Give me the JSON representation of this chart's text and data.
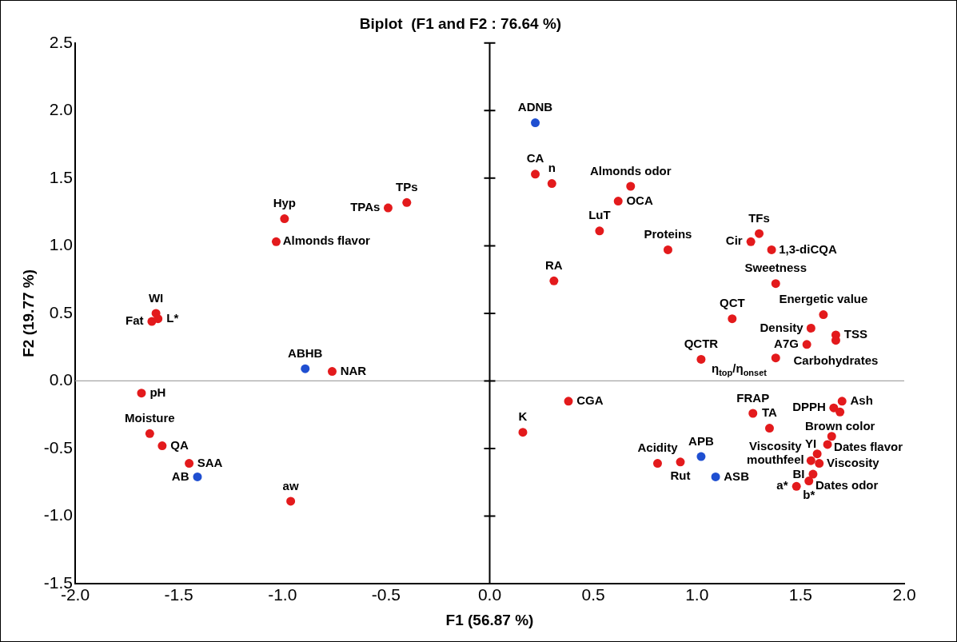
{
  "chart_data": {
    "type": "scatter",
    "title": "Biplot  (F1 and F2 : 76.64 %)",
    "xlabel": "F1 (56.87 %)",
    "ylabel": "F2 (19.77 %)",
    "xlim": [
      -2,
      2
    ],
    "ylim": [
      -1.5,
      2.5
    ],
    "xticks": [
      {
        "value": -2,
        "label": "-2.0"
      },
      {
        "value": -1.5,
        "label": "-1.5"
      },
      {
        "value": -1,
        "label": "-1.0"
      },
      {
        "value": -0.5,
        "label": "-0.5"
      },
      {
        "value": 0,
        "label": "0.0"
      },
      {
        "value": 0.5,
        "label": "0.5"
      },
      {
        "value": 1,
        "label": "1.0"
      },
      {
        "value": 1.5,
        "label": "1.5"
      },
      {
        "value": 2,
        "label": "2.0"
      }
    ],
    "yticks": [
      {
        "value": -1.5,
        "label": "-1.5"
      },
      {
        "value": -1,
        "label": "-1.0"
      },
      {
        "value": -0.5,
        "label": "-0.5"
      },
      {
        "value": 0,
        "label": "0.0"
      },
      {
        "value": 0.5,
        "label": "0.5"
      },
      {
        "value": 1,
        "label": "1.0"
      },
      {
        "value": 1.5,
        "label": "1.5"
      },
      {
        "value": 2,
        "label": "2.0"
      },
      {
        "value": 2.5,
        "label": "2.5"
      }
    ],
    "grid": false,
    "legend": false,
    "marker": "circle",
    "ref_lines": [
      {
        "axis": "y",
        "value": 0,
        "color": "#a6a6a6"
      },
      {
        "axis": "x",
        "value": 0,
        "color": "#000000"
      }
    ],
    "series": [
      {
        "color": "#e31a1c",
        "x": [
          -0.99,
          -1.03,
          -0.49,
          -0.4,
          -1.61,
          -1.63,
          -1.6,
          -0.76,
          -1.68,
          -1.64,
          -1.58,
          -1.45,
          -0.96,
          0.22,
          0.3,
          0.62,
          0.68,
          0.53,
          0.86,
          0.31,
          1.3,
          1.26,
          1.36,
          1.38,
          1.17,
          1.61,
          1.55,
          1.67,
          1.67,
          1.53,
          1.02,
          1.38,
          0.38,
          0.16,
          0.81,
          0.92,
          1.27,
          1.35,
          1.7,
          1.66,
          1.69,
          1.65,
          1.63,
          1.58,
          1.59,
          1.55,
          1.56,
          1.54,
          1.48
        ],
        "values": [
          1.2,
          1.03,
          1.28,
          1.32,
          0.5,
          0.44,
          0.46,
          0.07,
          -0.09,
          -0.39,
          -0.48,
          -0.61,
          -0.89,
          1.53,
          1.46,
          1.33,
          1.44,
          1.11,
          0.97,
          0.74,
          1.09,
          1.03,
          0.97,
          0.72,
          0.46,
          0.49,
          0.39,
          0.34,
          0.3,
          0.27,
          0.16,
          0.17,
          -0.15,
          -0.38,
          -0.61,
          -0.6,
          -0.24,
          -0.35,
          -0.15,
          -0.2,
          -0.23,
          -0.41,
          -0.47,
          -0.54,
          -0.61,
          -0.59,
          -0.69,
          -0.74,
          -0.78
        ]
      },
      {
        "color": "#1f4fd1",
        "x": [
          -0.89,
          -1.41,
          0.22,
          1.02,
          1.09
        ],
        "values": [
          0.09,
          -0.71,
          1.91,
          -0.56,
          -0.71
        ]
      }
    ],
    "annotations": [
      {
        "text": "Hyp",
        "x": -0.99,
        "y": 1.2
      },
      {
        "text": "TPAs",
        "x": -0.49,
        "y": 1.28
      },
      {
        "text": "TPs",
        "x": -0.4,
        "y": 1.32
      },
      {
        "text": "Almonds flavor",
        "x": -1.03,
        "y": 1.03
      },
      {
        "text": "WI",
        "x": -1.61,
        "y": 0.5
      },
      {
        "text": "Fat",
        "x": -1.63,
        "y": 0.44
      },
      {
        "text": "L*",
        "x": -1.6,
        "y": 0.46
      },
      {
        "text": "ABHB",
        "x": -0.89,
        "y": 0.09
      },
      {
        "text": "NAR",
        "x": -0.76,
        "y": 0.07
      },
      {
        "text": "pH",
        "x": -1.68,
        "y": -0.09
      },
      {
        "text": "Moisture",
        "x": -1.64,
        "y": -0.39
      },
      {
        "text": "QA",
        "x": -1.58,
        "y": -0.48
      },
      {
        "text": "SAA",
        "x": -1.45,
        "y": -0.61
      },
      {
        "text": "AB",
        "x": -1.41,
        "y": -0.71
      },
      {
        "text": "aw",
        "x": -0.96,
        "y": -0.89
      },
      {
        "text": "ADNB",
        "x": 0.22,
        "y": 1.91
      },
      {
        "text": "CA",
        "x": 0.22,
        "y": 1.53
      },
      {
        "text": "n",
        "x": 0.3,
        "y": 1.46
      },
      {
        "text": "Almonds odor",
        "x": 0.68,
        "y": 1.44
      },
      {
        "text": "OCA",
        "x": 0.62,
        "y": 1.33
      },
      {
        "text": "LuT",
        "x": 0.53,
        "y": 1.11
      },
      {
        "text": "Proteins",
        "x": 0.86,
        "y": 0.97
      },
      {
        "text": "RA",
        "x": 0.31,
        "y": 0.74
      },
      {
        "text": "TFs",
        "x": 1.3,
        "y": 1.09
      },
      {
        "text": "Cir",
        "x": 1.26,
        "y": 1.03
      },
      {
        "text": "1,3-diCQA",
        "x": 1.36,
        "y": 0.97
      },
      {
        "text": "Sweetness",
        "x": 1.38,
        "y": 0.72
      },
      {
        "text": "QCT",
        "x": 1.17,
        "y": 0.46
      },
      {
        "text": "Energetic value",
        "x": 1.61,
        "y": 0.49
      },
      {
        "text": "Density",
        "x": 1.55,
        "y": 0.39
      },
      {
        "text": "TSS",
        "x": 1.67,
        "y": 0.34
      },
      {
        "text": "A7G",
        "x": 1.53,
        "y": 0.27
      },
      {
        "text": "Carbohydrates",
        "x": 1.67,
        "y": 0.3
      },
      {
        "text": "QCTR",
        "x": 1.02,
        "y": 0.16
      },
      {
        "text": "η$_{top}$/η$_{onset}$",
        "x": 1.38,
        "y": 0.17
      },
      {
        "text": "FRAP",
        "x": 1.27,
        "y": -0.24
      },
      {
        "text": "DPPH",
        "x": 1.66,
        "y": -0.2
      },
      {
        "text": "Ash",
        "x": 1.7,
        "y": -0.15
      },
      {
        "text": "Brown color",
        "x": 1.69,
        "y": -0.23
      },
      {
        "text": "CGA",
        "x": 0.38,
        "y": -0.15
      },
      {
        "text": "TA",
        "x": 1.35,
        "y": -0.35
      },
      {
        "text": "K",
        "x": 0.16,
        "y": -0.38
      },
      {
        "text": "APB",
        "x": 1.02,
        "y": -0.56
      },
      {
        "text": "Acidity",
        "x": 0.81,
        "y": -0.61
      },
      {
        "text": "Dates flavor",
        "x": 1.65,
        "y": -0.41
      },
      {
        "text": "Viscosity\nmouthfeel",
        "x": 1.58,
        "y": -0.54
      },
      {
        "text": "Viscosity",
        "x": 1.59,
        "y": -0.61
      },
      {
        "text": "Rut",
        "x": 0.92,
        "y": -0.6
      },
      {
        "text": "Dates odor",
        "x": 1.56,
        "y": -0.69
      },
      {
        "text": "ASB",
        "x": 1.09,
        "y": -0.71
      },
      {
        "text": "b*",
        "x": 1.54,
        "y": -0.74
      },
      {
        "text": "YI",
        "x": 1.63,
        "y": -0.47
      },
      {
        "text": "a*",
        "x": 1.48,
        "y": -0.78
      },
      {
        "text": "BI",
        "x": 1.55,
        "y": -0.59
      }
    ]
  }
}
